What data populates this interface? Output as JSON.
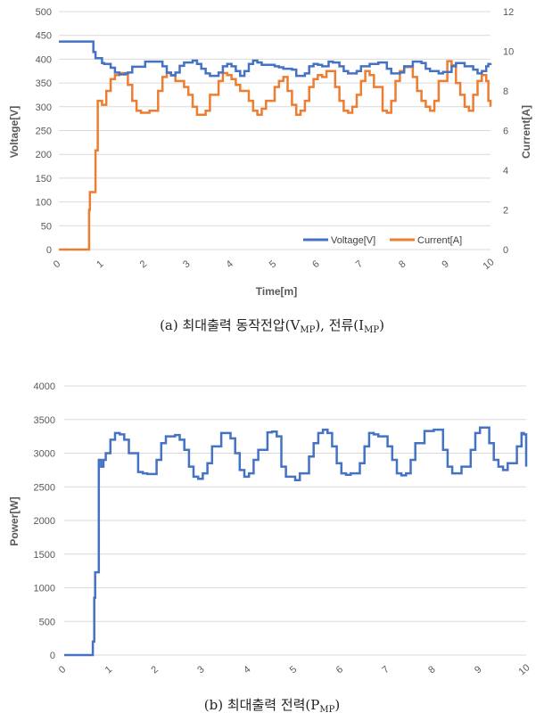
{
  "colors": {
    "voltage": "#4472C4",
    "current": "#ED7D31",
    "power": "#4472C4",
    "grid": "#D9D9D9",
    "tick_text": "#595959"
  },
  "captions": {
    "a": {
      "prefix": "(a) 최대출력 동작전압(V",
      "sub1": "MP",
      "mid": "), 전류(I",
      "sub2": "MP",
      "suffix": ")"
    },
    "b": {
      "prefix": "(b) 최대출력 전력(P",
      "sub1": "MP",
      "suffix": ")"
    }
  },
  "chart_data": [
    {
      "type": "line",
      "xlabel": "Time[m]",
      "ylabel": "Voltage[V]",
      "y2label": "Current[A]",
      "xlim": [
        0,
        10
      ],
      "ylim": [
        0,
        500
      ],
      "y2lim": [
        0,
        12
      ],
      "xticks": [
        "0",
        "1",
        "2",
        "3",
        "4",
        "5",
        "6",
        "7",
        "8",
        "9",
        "10"
      ],
      "yticks": [
        "0",
        "50",
        "100",
        "150",
        "200",
        "250",
        "300",
        "350",
        "400",
        "450",
        "500"
      ],
      "y2ticks": [
        "0",
        "2",
        "4",
        "6",
        "8",
        "10",
        "12"
      ],
      "grid": true,
      "legend_position": "bottom-right",
      "series": [
        {
          "name": "Voltage[V]",
          "axis": "left",
          "x": [
            0,
            0.6,
            0.75,
            0.8,
            0.85,
            1.0,
            1.05,
            1.2,
            1.3,
            1.4,
            1.55,
            1.6,
            1.7,
            2.0,
            2.1,
            2.3,
            2.4,
            2.5,
            2.6,
            2.7,
            2.8,
            2.9,
            3.1,
            3.2,
            3.3,
            3.4,
            3.5,
            3.7,
            3.8,
            3.9,
            4.0,
            4.1,
            4.2,
            4.3,
            4.4,
            4.5,
            4.6,
            4.7,
            5.0,
            5.1,
            5.2,
            5.4,
            5.5,
            5.7,
            5.8,
            5.9,
            6.0,
            6.1,
            6.25,
            6.35,
            6.5,
            6.6,
            6.7,
            6.9,
            7.0,
            7.1,
            7.2,
            7.4,
            7.6,
            7.7,
            7.9,
            8.0,
            8.2,
            8.4,
            8.5,
            8.6,
            8.8,
            8.9,
            9.1,
            9.2,
            9.4,
            9.6,
            9.7,
            9.8,
            9.9,
            9.95,
            10.0
          ],
          "values": [
            437,
            437,
            437,
            415,
            402,
            392,
            390,
            382,
            372,
            368,
            370,
            372,
            384,
            395,
            395,
            395,
            385,
            372,
            366,
            372,
            386,
            393,
            397,
            390,
            380,
            370,
            365,
            372,
            385,
            390,
            385,
            375,
            365,
            375,
            390,
            397,
            393,
            388,
            385,
            383,
            380,
            378,
            365,
            370,
            385,
            390,
            388,
            385,
            395,
            393,
            385,
            375,
            370,
            375,
            385,
            385,
            390,
            393,
            380,
            370,
            372,
            385,
            395,
            392,
            380,
            375,
            370,
            373,
            385,
            392,
            385,
            378,
            370,
            375,
            385,
            390,
            392
          ]
        },
        {
          "name": "Current[A]",
          "axis": "right",
          "x": [
            0,
            0.6,
            0.65,
            0.7,
            0.72,
            0.8,
            0.85,
            0.9,
            1.0,
            1.1,
            1.2,
            1.3,
            1.4,
            1.6,
            1.7,
            1.8,
            1.9,
            2.0,
            2.1,
            2.3,
            2.4,
            2.5,
            2.6,
            2.7,
            2.9,
            3.0,
            3.1,
            3.2,
            3.3,
            3.4,
            3.5,
            3.7,
            3.8,
            3.9,
            4.0,
            4.1,
            4.2,
            4.4,
            4.5,
            4.6,
            4.7,
            4.8,
            5.0,
            5.1,
            5.2,
            5.3,
            5.4,
            5.5,
            5.6,
            5.7,
            5.8,
            5.9,
            6.0,
            6.1,
            6.2,
            6.4,
            6.5,
            6.6,
            6.7,
            6.8,
            6.9,
            7.0,
            7.1,
            7.2,
            7.3,
            7.5,
            7.6,
            7.7,
            7.8,
            7.9,
            8.0,
            8.2,
            8.3,
            8.4,
            8.5,
            8.6,
            8.7,
            8.8,
            9.0,
            9.1,
            9.2,
            9.3,
            9.4,
            9.5,
            9.6,
            9.7,
            9.8,
            9.9,
            9.95,
            10.0
          ],
          "values": [
            0,
            0,
            0,
            2,
            2.9,
            2.9,
            5,
            7.5,
            7.3,
            8,
            8.6,
            8.8,
            8.9,
            8.3,
            7.5,
            7,
            6.9,
            6.9,
            7,
            8,
            8.7,
            8.9,
            8.8,
            8.5,
            8.2,
            7.8,
            7.2,
            6.8,
            6.8,
            7,
            7.8,
            8.5,
            8.9,
            8.8,
            8.6,
            8.3,
            8.0,
            7.5,
            7.0,
            6.8,
            7.1,
            7.5,
            8.2,
            8.5,
            8.7,
            8.0,
            7.3,
            6.8,
            7.0,
            7.5,
            8.2,
            8.6,
            8.8,
            8.7,
            9.0,
            8.2,
            7.5,
            7.0,
            6.9,
            7.2,
            7.8,
            8.5,
            9.0,
            8.8,
            8.2,
            7.0,
            6.9,
            7.5,
            8.5,
            9.0,
            9.2,
            8.7,
            8.0,
            7.5,
            7.2,
            7.0,
            7.5,
            8.5,
            9.5,
            9.3,
            8.4,
            7.8,
            7.2,
            7.0,
            7.8,
            8.5,
            8.8,
            8.5,
            7.5,
            7.2
          ]
        }
      ]
    },
    {
      "type": "line",
      "xlabel": "",
      "ylabel": "Power[W]",
      "xlim": [
        0,
        10
      ],
      "ylim": [
        0,
        4000
      ],
      "xticks": [
        "0",
        "1",
        "2",
        "3",
        "4",
        "5",
        "6",
        "7",
        "8",
        "9",
        "10"
      ],
      "yticks": [
        "0",
        "500",
        "1000",
        "1500",
        "2000",
        "2500",
        "3000",
        "3500",
        "4000"
      ],
      "grid": true,
      "series": [
        {
          "name": "",
          "x": [
            0,
            0.6,
            0.62,
            0.65,
            0.67,
            0.7,
            0.75,
            0.78,
            0.8,
            0.85,
            0.9,
            1.0,
            1.1,
            1.2,
            1.3,
            1.4,
            1.6,
            1.7,
            1.8,
            2.0,
            2.1,
            2.2,
            2.4,
            2.5,
            2.6,
            2.7,
            2.8,
            2.9,
            3.0,
            3.1,
            3.2,
            3.4,
            3.6,
            3.7,
            3.8,
            3.9,
            4.0,
            4.1,
            4.2,
            4.4,
            4.5,
            4.6,
            4.7,
            4.8,
            5.0,
            5.1,
            5.3,
            5.4,
            5.5,
            5.6,
            5.7,
            5.8,
            5.9,
            6.0,
            6.1,
            6.2,
            6.4,
            6.5,
            6.6,
            6.7,
            6.8,
            7.0,
            7.1,
            7.2,
            7.3,
            7.4,
            7.5,
            7.6,
            7.8,
            8.0,
            8.2,
            8.3,
            8.4,
            8.5,
            8.6,
            8.8,
            8.9,
            9.0,
            9.2,
            9.3,
            9.4,
            9.5,
            9.6,
            9.8,
            9.9,
            9.95,
            10.0
          ],
          "values": [
            0,
            0,
            200,
            850,
            1230,
            1230,
            2900,
            2900,
            2800,
            2900,
            3000,
            3200,
            3300,
            3280,
            3200,
            3000,
            2720,
            2700,
            2690,
            2900,
            3150,
            3250,
            3270,
            3200,
            3050,
            2800,
            2650,
            2620,
            2700,
            2850,
            3100,
            3300,
            3220,
            3000,
            2750,
            2650,
            2700,
            2900,
            3050,
            3310,
            3320,
            3250,
            2800,
            2650,
            2600,
            2700,
            2950,
            3150,
            3300,
            3350,
            3300,
            3100,
            2850,
            2700,
            2680,
            2700,
            2850,
            3100,
            3300,
            3280,
            3250,
            3100,
            2900,
            2700,
            2670,
            2700,
            2900,
            3150,
            3330,
            3350,
            3050,
            2800,
            2700,
            2700,
            2800,
            3050,
            3300,
            3380,
            3150,
            2900,
            2800,
            2750,
            2850,
            3100,
            3300,
            3280,
            2800
          ]
        }
      ]
    }
  ]
}
